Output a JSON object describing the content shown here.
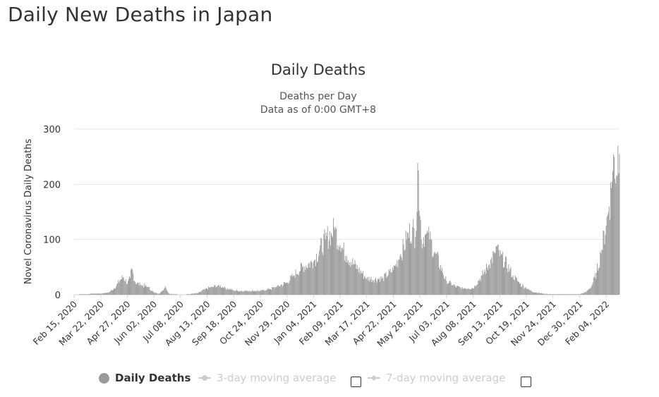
{
  "page": {
    "title": "Daily New Deaths in Japan"
  },
  "chart_data": {
    "type": "bar",
    "title": "Daily Deaths",
    "subtitle_lines": [
      "Deaths per Day",
      "Data as of 0:00 GMT+8"
    ],
    "xlabel": "",
    "ylabel": "Novel Coronavirus Daily Deaths",
    "ylim": [
      0,
      300
    ],
    "yticks": [
      0,
      100,
      200,
      300
    ],
    "grid": true,
    "legend_position": "bottom",
    "bar_color": "#999999",
    "x_start": "2020-02-15",
    "x_end": "2022-02-22",
    "xtick_labels": [
      "Feb 15, 2020",
      "Mar 22, 2020",
      "Apr 27, 2020",
      "Jun 02, 2020",
      "Jul 08, 2020",
      "Aug 13, 2020",
      "Sep 18, 2020",
      "Oct 24, 2020",
      "Nov 29, 2020",
      "Jan 04, 2021",
      "Feb 09, 2021",
      "Mar 17, 2021",
      "Apr 22, 2021",
      "May 28, 2021",
      "Jul 03, 2021",
      "Aug 08, 2021",
      "Sep 13, 2021",
      "Oct 19, 2021",
      "Nov 24, 2021",
      "Dec 30, 2021",
      "Feb 04, 2022"
    ],
    "series": [
      {
        "name": "Daily Deaths",
        "approx_points": [
          [
            "2020-02-15",
            0
          ],
          [
            "2020-03-01",
            1
          ],
          [
            "2020-03-10",
            2
          ],
          [
            "2020-03-22",
            2
          ],
          [
            "2020-04-01",
            4
          ],
          [
            "2020-04-10",
            12
          ],
          [
            "2020-04-18",
            28
          ],
          [
            "2020-04-22",
            32
          ],
          [
            "2020-04-27",
            20
          ],
          [
            "2020-05-01",
            30
          ],
          [
            "2020-05-03",
            48
          ],
          [
            "2020-05-08",
            22
          ],
          [
            "2020-05-15",
            18
          ],
          [
            "2020-05-25",
            14
          ],
          [
            "2020-06-02",
            4
          ],
          [
            "2020-06-10",
            2
          ],
          [
            "2020-06-18",
            15
          ],
          [
            "2020-06-22",
            2
          ],
          [
            "2020-07-08",
            0
          ],
          [
            "2020-07-20",
            1
          ],
          [
            "2020-08-01",
            3
          ],
          [
            "2020-08-10",
            10
          ],
          [
            "2020-08-20",
            14
          ],
          [
            "2020-08-28",
            17
          ],
          [
            "2020-09-05",
            13
          ],
          [
            "2020-09-18",
            8
          ],
          [
            "2020-09-28",
            7
          ],
          [
            "2020-10-10",
            7
          ],
          [
            "2020-10-24",
            7
          ],
          [
            "2020-11-05",
            10
          ],
          [
            "2020-11-15",
            14
          ],
          [
            "2020-11-29",
            22
          ],
          [
            "2020-12-08",
            35
          ],
          [
            "2020-12-20",
            50
          ],
          [
            "2021-01-04",
            60
          ],
          [
            "2021-01-12",
            80
          ],
          [
            "2021-01-20",
            100
          ],
          [
            "2021-01-28",
            112
          ],
          [
            "2021-02-02",
            118
          ],
          [
            "2021-02-09",
            90
          ],
          [
            "2021-02-18",
            70
          ],
          [
            "2021-02-28",
            55
          ],
          [
            "2021-03-10",
            40
          ],
          [
            "2021-03-17",
            30
          ],
          [
            "2021-03-28",
            28
          ],
          [
            "2021-04-08",
            30
          ],
          [
            "2021-04-22",
            45
          ],
          [
            "2021-05-01",
            70
          ],
          [
            "2021-05-10",
            100
          ],
          [
            "2021-05-18",
            122
          ],
          [
            "2021-05-22",
            105
          ],
          [
            "2021-05-26",
            225
          ],
          [
            "2021-05-30",
            100
          ],
          [
            "2021-06-05",
            110
          ],
          [
            "2021-06-10",
            100
          ],
          [
            "2021-06-18",
            75
          ],
          [
            "2021-06-28",
            40
          ],
          [
            "2021-07-03",
            25
          ],
          [
            "2021-07-15",
            15
          ],
          [
            "2021-07-25",
            12
          ],
          [
            "2021-08-08",
            12
          ],
          [
            "2021-08-20",
            35
          ],
          [
            "2021-08-30",
            55
          ],
          [
            "2021-09-06",
            75
          ],
          [
            "2021-09-08",
            88
          ],
          [
            "2021-09-13",
            70
          ],
          [
            "2021-09-20",
            60
          ],
          [
            "2021-10-01",
            35
          ],
          [
            "2021-10-10",
            20
          ],
          [
            "2021-10-19",
            12
          ],
          [
            "2021-10-28",
            5
          ],
          [
            "2021-11-10",
            2
          ],
          [
            "2021-11-24",
            1
          ],
          [
            "2021-12-15",
            1
          ],
          [
            "2021-12-30",
            1
          ],
          [
            "2022-01-08",
            5
          ],
          [
            "2022-01-15",
            15
          ],
          [
            "2022-01-22",
            40
          ],
          [
            "2022-01-28",
            75
          ],
          [
            "2022-02-04",
            125
          ],
          [
            "2022-02-08",
            160
          ],
          [
            "2022-02-12",
            205
          ],
          [
            "2022-02-15",
            250
          ],
          [
            "2022-02-18",
            215
          ],
          [
            "2022-02-20",
            270
          ],
          [
            "2022-02-22",
            255
          ]
        ]
      },
      {
        "name": "3-day moving average",
        "visible": false
      },
      {
        "name": "7-day moving average",
        "visible": false
      }
    ]
  },
  "legend": {
    "items": [
      {
        "label": "Daily Deaths",
        "active": true
      },
      {
        "label": "3-day moving average",
        "active": false
      },
      {
        "label": "7-day moving average",
        "active": false
      }
    ]
  }
}
